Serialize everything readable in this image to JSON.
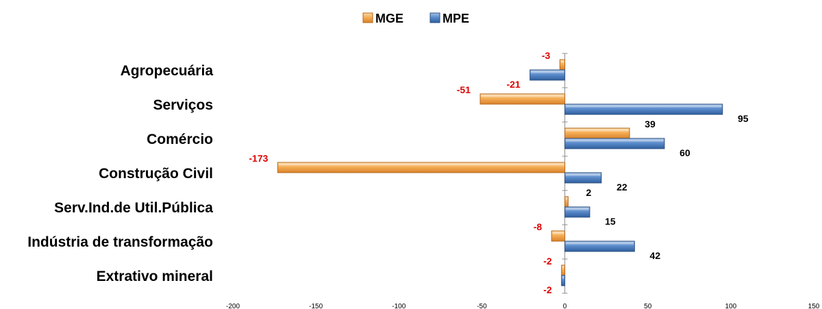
{
  "chart_data": {
    "type": "bar",
    "orientation": "horizontal",
    "categories": [
      "Agropecuária",
      "Serviços",
      "Comércio",
      "Construção Civil",
      "Serv.Ind.de Util.Pública",
      "Indústria de transformação",
      "Extrativo mineral"
    ],
    "series": [
      {
        "name": "MGE",
        "values": [
          -3,
          -51,
          39,
          -173,
          2,
          -8,
          -2
        ],
        "color": "#f0a848"
      },
      {
        "name": "MPE",
        "values": [
          -21,
          95,
          60,
          22,
          15,
          42,
          -2
        ],
        "color": "#4f81bd"
      }
    ],
    "xlim": [
      -200,
      150
    ],
    "xticks": [
      "-200",
      "-150",
      "-100",
      "-50",
      "0",
      "50",
      "100",
      "150"
    ],
    "legend": {
      "position": "top",
      "items": [
        "MGE",
        "MPE"
      ]
    },
    "data_label_colors": {
      "negative": "#e00000",
      "positive": "#000000"
    },
    "grid": false,
    "title": "",
    "xlabel": "",
    "ylabel": ""
  }
}
